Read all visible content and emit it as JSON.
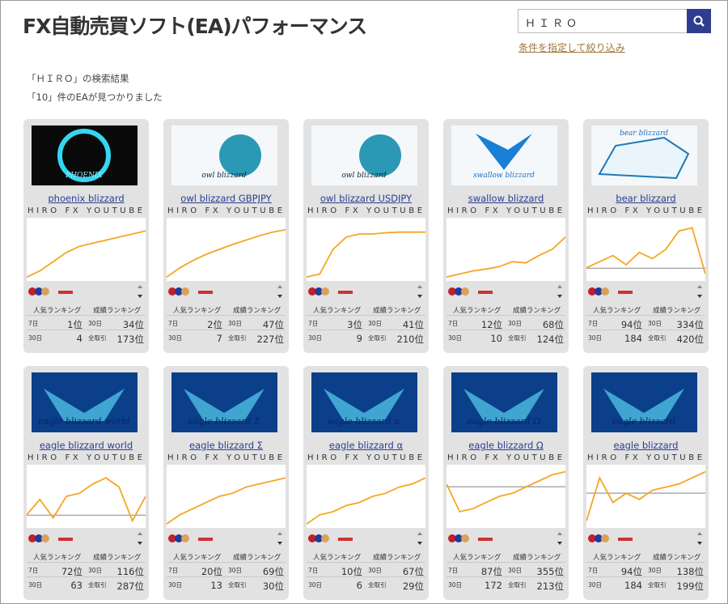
{
  "header": {
    "title": "FX自動売買ソフト(EA)パフォーマンス",
    "search_value": "ＨＩＲＯ",
    "filter_link": "条件を指定して絞り込み"
  },
  "results": {
    "query_line": "「ＨＩＲＯ」の検索結果",
    "count_line": "「10」件のEAが見つかりました"
  },
  "labels": {
    "popular": "人気ランキング",
    "performance": "成績ランキング",
    "d7": "7日",
    "d30": "30日",
    "all": "全取引"
  },
  "cards": [
    {
      "name": "phoenix blizzard",
      "logo": "PHOENIX",
      "author": "HIRO FX YOUTUBE…",
      "pop7": "1位",
      "perf30": "34位",
      "pop30": "4",
      "perfall": "173位"
    },
    {
      "name": "owl blizzard GBPJPY",
      "logo": "owl blizzard",
      "author": "HIRO FX YOUTUBE…",
      "pop7": "2位",
      "perf30": "47位",
      "pop30": "7",
      "perfall": "227位"
    },
    {
      "name": "owl blizzard USDJPY",
      "logo": "owl blizzard",
      "author": "HIRO FX YOUTUBE…",
      "pop7": "3位",
      "perf30": "41位",
      "pop30": "9",
      "perfall": "210位"
    },
    {
      "name": "swallow blizzard",
      "logo": "swallow blizzard",
      "author": "HIRO FX YOUTUBE…",
      "pop7": "12位",
      "perf30": "68位",
      "pop30": "10",
      "perfall": "124位"
    },
    {
      "name": "bear blizzard",
      "logo": "bear blizzard",
      "author": "HIRO FX YOUTUBE…",
      "pop7": "94位",
      "perf30": "334位",
      "pop30": "184",
      "perfall": "420位"
    },
    {
      "name": "eagle blizzard world",
      "logo": "eagle blizzard world",
      "author": "HIRO FX YOUTUBE…",
      "pop7": "72位",
      "perf30": "116位",
      "pop30": "63",
      "perfall": "287位"
    },
    {
      "name": "eagle blizzard Σ",
      "logo": "eagle blizzard Σ",
      "author": "HIRO FX YOUTUBE…",
      "pop7": "20位",
      "perf30": "69位",
      "pop30": "13",
      "perfall": "30位"
    },
    {
      "name": "eagle blizzard α",
      "logo": "eagle blizzard α",
      "author": "HIRO FX YOUTUBE…",
      "pop7": "10位",
      "perf30": "67位",
      "pop30": "6",
      "perfall": "29位"
    },
    {
      "name": "eagle blizzard Ω",
      "logo": "eagle blizzard Ω",
      "author": "HIRO FX YOUTUBE…",
      "pop7": "87位",
      "perf30": "355位",
      "pop30": "172",
      "perfall": "213位"
    },
    {
      "name": "eagle blizzard",
      "logo": "eagle blizzard",
      "author": "HIRO FX YOUTUBE…",
      "pop7": "94位",
      "perf30": "138位",
      "pop30": "184",
      "perfall": "199位"
    }
  ]
}
